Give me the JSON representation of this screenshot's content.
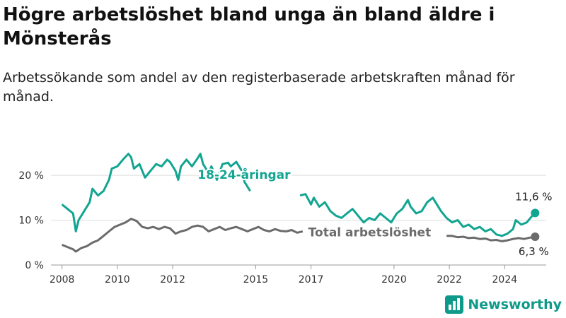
{
  "title": "Högre arbetslöshet bland unga än bland äldre i Mönsterås",
  "subtitle": "Arbetssökande som andel av den registerbaserade arbetskraften månad för månad.",
  "brand": "Newsworthy",
  "colors": {
    "youth": "#12a591",
    "total": "#6b6b6b",
    "grid": "#dddddd",
    "brand": "#0e9a8a"
  },
  "chart_data": {
    "type": "line",
    "title": "Högre arbetslöshet bland unga än bland äldre i Mönsterås",
    "xlabel": "",
    "ylabel": "",
    "xlim": [
      2007.6,
      2025.5
    ],
    "ylim": [
      0,
      26
    ],
    "x_ticks": [
      2008,
      2010,
      2012,
      2015,
      2017,
      2020,
      2022,
      2024
    ],
    "y_ticks": [
      0,
      10,
      20
    ],
    "y_tick_labels": [
      "0 %",
      "10 %",
      "20 %"
    ],
    "grid": true,
    "series": [
      {
        "name": "18-24-åringar",
        "color": "#12a591",
        "end_label": "11,6 %",
        "points": [
          [
            2008.0,
            13.5
          ],
          [
            2008.2,
            12.5
          ],
          [
            2008.4,
            11.5
          ],
          [
            2008.5,
            7.5
          ],
          [
            2008.6,
            10
          ],
          [
            2008.8,
            12
          ],
          [
            2009.0,
            14
          ],
          [
            2009.1,
            17
          ],
          [
            2009.3,
            15.5
          ],
          [
            2009.5,
            16.5
          ],
          [
            2009.7,
            19
          ],
          [
            2009.8,
            21.5
          ],
          [
            2010.0,
            22
          ],
          [
            2010.2,
            23.5
          ],
          [
            2010.4,
            24.8
          ],
          [
            2010.5,
            24
          ],
          [
            2010.6,
            21.5
          ],
          [
            2010.8,
            22.5
          ],
          [
            2011.0,
            19.5
          ],
          [
            2011.2,
            21
          ],
          [
            2011.4,
            22.5
          ],
          [
            2011.6,
            22
          ],
          [
            2011.8,
            23.5
          ],
          [
            2011.9,
            23
          ],
          [
            2012.1,
            21
          ],
          [
            2012.2,
            19
          ],
          [
            2012.3,
            22
          ],
          [
            2012.5,
            23.5
          ],
          [
            2012.7,
            22
          ],
          [
            2012.9,
            23.8
          ],
          [
            2013.0,
            24.8
          ],
          [
            2013.1,
            22.5
          ],
          [
            2013.3,
            20.5
          ],
          [
            2013.4,
            22
          ],
          [
            2013.6,
            19
          ],
          [
            2013.8,
            22.5
          ],
          [
            2014.0,
            22.8
          ],
          [
            2014.1,
            22
          ],
          [
            2014.3,
            23
          ],
          [
            2014.5,
            21
          ],
          [
            2014.6,
            18.5
          ],
          [
            2014.8,
            16.5
          ]
        ],
        "points_b": [
          [
            2016.6,
            15.5
          ],
          [
            2016.8,
            15.8
          ],
          [
            2017.0,
            13.5
          ],
          [
            2017.1,
            15
          ],
          [
            2017.3,
            13
          ],
          [
            2017.5,
            14
          ],
          [
            2017.7,
            12
          ],
          [
            2017.9,
            11
          ],
          [
            2018.1,
            10.5
          ],
          [
            2018.3,
            11.5
          ],
          [
            2018.5,
            12.5
          ],
          [
            2018.7,
            11
          ],
          [
            2018.9,
            9.5
          ],
          [
            2019.1,
            10.5
          ],
          [
            2019.3,
            10
          ],
          [
            2019.5,
            11.5
          ],
          [
            2019.7,
            10.5
          ],
          [
            2019.9,
            9.5
          ],
          [
            2020.1,
            11.5
          ],
          [
            2020.3,
            12.5
          ],
          [
            2020.5,
            14.5
          ],
          [
            2020.6,
            13
          ],
          [
            2020.8,
            11.5
          ],
          [
            2021.0,
            12
          ],
          [
            2021.2,
            14
          ],
          [
            2021.4,
            15
          ],
          [
            2021.5,
            14
          ],
          [
            2021.7,
            12
          ],
          [
            2021.9,
            10.5
          ],
          [
            2022.1,
            9.5
          ],
          [
            2022.3,
            10
          ],
          [
            2022.5,
            8.5
          ],
          [
            2022.7,
            9
          ],
          [
            2022.9,
            8
          ],
          [
            2023.1,
            8.5
          ],
          [
            2023.3,
            7.5
          ],
          [
            2023.5,
            8
          ],
          [
            2023.7,
            6.8
          ],
          [
            2023.9,
            6.5
          ],
          [
            2024.1,
            7
          ],
          [
            2024.3,
            8
          ],
          [
            2024.4,
            10
          ],
          [
            2024.6,
            9
          ],
          [
            2024.8,
            9.5
          ],
          [
            2025.0,
            11
          ],
          [
            2025.1,
            11.6
          ]
        ]
      },
      {
        "name": "Total arbetslöshet",
        "color": "#6b6b6b",
        "end_label": "6,3 %",
        "points": [
          [
            2008.0,
            4.5
          ],
          [
            2008.2,
            4
          ],
          [
            2008.4,
            3.5
          ],
          [
            2008.5,
            3
          ],
          [
            2008.7,
            3.8
          ],
          [
            2008.9,
            4.2
          ],
          [
            2009.1,
            5
          ],
          [
            2009.3,
            5.5
          ],
          [
            2009.5,
            6.5
          ],
          [
            2009.7,
            7.5
          ],
          [
            2009.9,
            8.5
          ],
          [
            2010.1,
            9
          ],
          [
            2010.3,
            9.5
          ],
          [
            2010.5,
            10.3
          ],
          [
            2010.7,
            9.8
          ],
          [
            2010.9,
            8.5
          ],
          [
            2011.1,
            8.2
          ],
          [
            2011.3,
            8.5
          ],
          [
            2011.5,
            8
          ],
          [
            2011.7,
            8.5
          ],
          [
            2011.9,
            8.2
          ],
          [
            2012.1,
            7
          ],
          [
            2012.3,
            7.5
          ],
          [
            2012.5,
            7.8
          ],
          [
            2012.7,
            8.5
          ],
          [
            2012.9,
            8.8
          ],
          [
            2013.1,
            8.5
          ],
          [
            2013.3,
            7.5
          ],
          [
            2013.5,
            8
          ],
          [
            2013.7,
            8.5
          ],
          [
            2013.9,
            7.8
          ],
          [
            2014.1,
            8.2
          ],
          [
            2014.3,
            8.5
          ],
          [
            2014.5,
            8
          ],
          [
            2014.7,
            7.5
          ],
          [
            2014.9,
            8
          ],
          [
            2015.1,
            8.5
          ],
          [
            2015.3,
            7.8
          ],
          [
            2015.5,
            7.5
          ],
          [
            2015.7,
            8
          ],
          [
            2015.9,
            7.6
          ],
          [
            2016.1,
            7.5
          ],
          [
            2016.3,
            7.8
          ],
          [
            2016.5,
            7.2
          ],
          [
            2016.7,
            7.5
          ]
        ],
        "points_b": [
          [
            2021.9,
            6.5
          ],
          [
            2022.1,
            6.5
          ],
          [
            2022.3,
            6.2
          ],
          [
            2022.5,
            6.3
          ],
          [
            2022.7,
            6
          ],
          [
            2022.9,
            6.1
          ],
          [
            2023.1,
            5.8
          ],
          [
            2023.3,
            5.9
          ],
          [
            2023.5,
            5.5
          ],
          [
            2023.7,
            5.6
          ],
          [
            2023.9,
            5.3
          ],
          [
            2024.1,
            5.5
          ],
          [
            2024.3,
            5.8
          ],
          [
            2024.5,
            6
          ],
          [
            2024.7,
            5.8
          ],
          [
            2024.9,
            6.1
          ],
          [
            2025.1,
            6.3
          ]
        ]
      }
    ]
  }
}
